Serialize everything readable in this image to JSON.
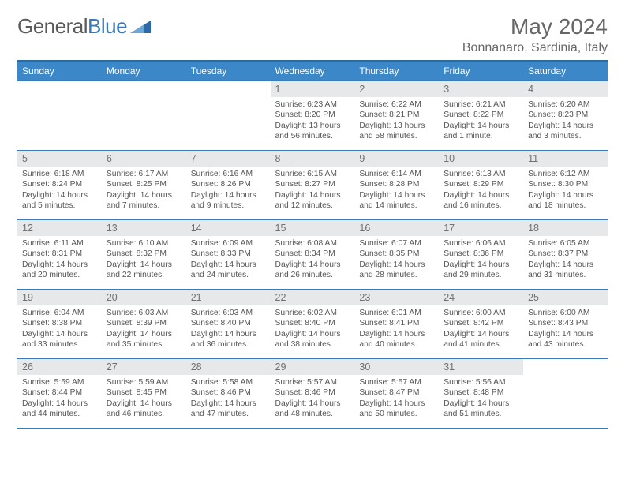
{
  "logo": {
    "text1": "General",
    "text2": "Blue"
  },
  "title": "May 2024",
  "location": "Bonnanaro, Sardinia, Italy",
  "days_of_week": [
    "Sunday",
    "Monday",
    "Tuesday",
    "Wednesday",
    "Thursday",
    "Friday",
    "Saturday"
  ],
  "colors": {
    "header_bg": "#3b87c8",
    "header_border": "#2f6a9c",
    "cell_border": "#3a7ab8",
    "daynum_bg": "#e6e8ea",
    "text": "#555555"
  },
  "weeks": [
    [
      {
        "n": "",
        "sr": "",
        "ss": "",
        "dl": ""
      },
      {
        "n": "",
        "sr": "",
        "ss": "",
        "dl": ""
      },
      {
        "n": "",
        "sr": "",
        "ss": "",
        "dl": ""
      },
      {
        "n": "1",
        "sr": "Sunrise: 6:23 AM",
        "ss": "Sunset: 8:20 PM",
        "dl": "Daylight: 13 hours and 56 minutes."
      },
      {
        "n": "2",
        "sr": "Sunrise: 6:22 AM",
        "ss": "Sunset: 8:21 PM",
        "dl": "Daylight: 13 hours and 58 minutes."
      },
      {
        "n": "3",
        "sr": "Sunrise: 6:21 AM",
        "ss": "Sunset: 8:22 PM",
        "dl": "Daylight: 14 hours and 1 minute."
      },
      {
        "n": "4",
        "sr": "Sunrise: 6:20 AM",
        "ss": "Sunset: 8:23 PM",
        "dl": "Daylight: 14 hours and 3 minutes."
      }
    ],
    [
      {
        "n": "5",
        "sr": "Sunrise: 6:18 AM",
        "ss": "Sunset: 8:24 PM",
        "dl": "Daylight: 14 hours and 5 minutes."
      },
      {
        "n": "6",
        "sr": "Sunrise: 6:17 AM",
        "ss": "Sunset: 8:25 PM",
        "dl": "Daylight: 14 hours and 7 minutes."
      },
      {
        "n": "7",
        "sr": "Sunrise: 6:16 AM",
        "ss": "Sunset: 8:26 PM",
        "dl": "Daylight: 14 hours and 9 minutes."
      },
      {
        "n": "8",
        "sr": "Sunrise: 6:15 AM",
        "ss": "Sunset: 8:27 PM",
        "dl": "Daylight: 14 hours and 12 minutes."
      },
      {
        "n": "9",
        "sr": "Sunrise: 6:14 AM",
        "ss": "Sunset: 8:28 PM",
        "dl": "Daylight: 14 hours and 14 minutes."
      },
      {
        "n": "10",
        "sr": "Sunrise: 6:13 AM",
        "ss": "Sunset: 8:29 PM",
        "dl": "Daylight: 14 hours and 16 minutes."
      },
      {
        "n": "11",
        "sr": "Sunrise: 6:12 AM",
        "ss": "Sunset: 8:30 PM",
        "dl": "Daylight: 14 hours and 18 minutes."
      }
    ],
    [
      {
        "n": "12",
        "sr": "Sunrise: 6:11 AM",
        "ss": "Sunset: 8:31 PM",
        "dl": "Daylight: 14 hours and 20 minutes."
      },
      {
        "n": "13",
        "sr": "Sunrise: 6:10 AM",
        "ss": "Sunset: 8:32 PM",
        "dl": "Daylight: 14 hours and 22 minutes."
      },
      {
        "n": "14",
        "sr": "Sunrise: 6:09 AM",
        "ss": "Sunset: 8:33 PM",
        "dl": "Daylight: 14 hours and 24 minutes."
      },
      {
        "n": "15",
        "sr": "Sunrise: 6:08 AM",
        "ss": "Sunset: 8:34 PM",
        "dl": "Daylight: 14 hours and 26 minutes."
      },
      {
        "n": "16",
        "sr": "Sunrise: 6:07 AM",
        "ss": "Sunset: 8:35 PM",
        "dl": "Daylight: 14 hours and 28 minutes."
      },
      {
        "n": "17",
        "sr": "Sunrise: 6:06 AM",
        "ss": "Sunset: 8:36 PM",
        "dl": "Daylight: 14 hours and 29 minutes."
      },
      {
        "n": "18",
        "sr": "Sunrise: 6:05 AM",
        "ss": "Sunset: 8:37 PM",
        "dl": "Daylight: 14 hours and 31 minutes."
      }
    ],
    [
      {
        "n": "19",
        "sr": "Sunrise: 6:04 AM",
        "ss": "Sunset: 8:38 PM",
        "dl": "Daylight: 14 hours and 33 minutes."
      },
      {
        "n": "20",
        "sr": "Sunrise: 6:03 AM",
        "ss": "Sunset: 8:39 PM",
        "dl": "Daylight: 14 hours and 35 minutes."
      },
      {
        "n": "21",
        "sr": "Sunrise: 6:03 AM",
        "ss": "Sunset: 8:40 PM",
        "dl": "Daylight: 14 hours and 36 minutes."
      },
      {
        "n": "22",
        "sr": "Sunrise: 6:02 AM",
        "ss": "Sunset: 8:40 PM",
        "dl": "Daylight: 14 hours and 38 minutes."
      },
      {
        "n": "23",
        "sr": "Sunrise: 6:01 AM",
        "ss": "Sunset: 8:41 PM",
        "dl": "Daylight: 14 hours and 40 minutes."
      },
      {
        "n": "24",
        "sr": "Sunrise: 6:00 AM",
        "ss": "Sunset: 8:42 PM",
        "dl": "Daylight: 14 hours and 41 minutes."
      },
      {
        "n": "25",
        "sr": "Sunrise: 6:00 AM",
        "ss": "Sunset: 8:43 PM",
        "dl": "Daylight: 14 hours and 43 minutes."
      }
    ],
    [
      {
        "n": "26",
        "sr": "Sunrise: 5:59 AM",
        "ss": "Sunset: 8:44 PM",
        "dl": "Daylight: 14 hours and 44 minutes."
      },
      {
        "n": "27",
        "sr": "Sunrise: 5:59 AM",
        "ss": "Sunset: 8:45 PM",
        "dl": "Daylight: 14 hours and 46 minutes."
      },
      {
        "n": "28",
        "sr": "Sunrise: 5:58 AM",
        "ss": "Sunset: 8:46 PM",
        "dl": "Daylight: 14 hours and 47 minutes."
      },
      {
        "n": "29",
        "sr": "Sunrise: 5:57 AM",
        "ss": "Sunset: 8:46 PM",
        "dl": "Daylight: 14 hours and 48 minutes."
      },
      {
        "n": "30",
        "sr": "Sunrise: 5:57 AM",
        "ss": "Sunset: 8:47 PM",
        "dl": "Daylight: 14 hours and 50 minutes."
      },
      {
        "n": "31",
        "sr": "Sunrise: 5:56 AM",
        "ss": "Sunset: 8:48 PM",
        "dl": "Daylight: 14 hours and 51 minutes."
      },
      {
        "n": "",
        "sr": "",
        "ss": "",
        "dl": ""
      }
    ]
  ]
}
